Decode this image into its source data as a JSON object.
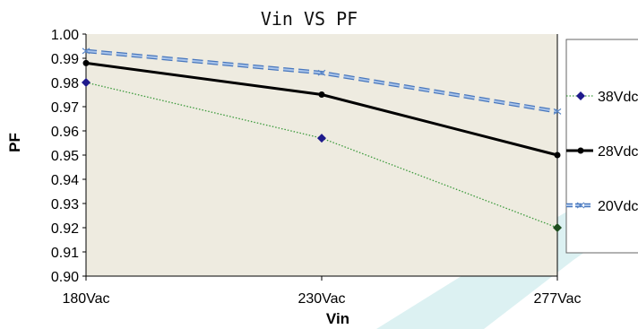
{
  "chart_data": {
    "type": "line",
    "title": "Vin VS PF",
    "xlabel": "Vin",
    "ylabel": "PF",
    "categories": [
      "180Vac",
      "230Vac",
      "277Vac"
    ],
    "ylim": [
      0.9,
      1.0
    ],
    "yticks": [
      "0.90",
      "0.91",
      "0.92",
      "0.93",
      "0.94",
      "0.95",
      "0.96",
      "0.97",
      "0.98",
      "0.99",
      "1.00"
    ],
    "grid": false,
    "legend_position": "right",
    "series": [
      {
        "name": "38Vdc",
        "values": [
          0.98,
          0.957,
          0.92
        ],
        "color": "#1f1a8c",
        "style": "dotted-green-with-diamonds",
        "line_color": "#3c9a3c",
        "marker": "diamond"
      },
      {
        "name": "28Vdc",
        "values": [
          0.988,
          0.975,
          0.95
        ],
        "color": "#000000",
        "style": "solid",
        "line_color": "#000000",
        "marker": "circle"
      },
      {
        "name": "20Vdc",
        "values": [
          0.993,
          0.984,
          0.968
        ],
        "color": "#5b87c7",
        "style": "dashed",
        "line_color": "#6a95d2",
        "marker": "x"
      }
    ],
    "colors": {
      "plot_background": "#eeebe0",
      "accent_shape": "#10a0a6"
    }
  }
}
